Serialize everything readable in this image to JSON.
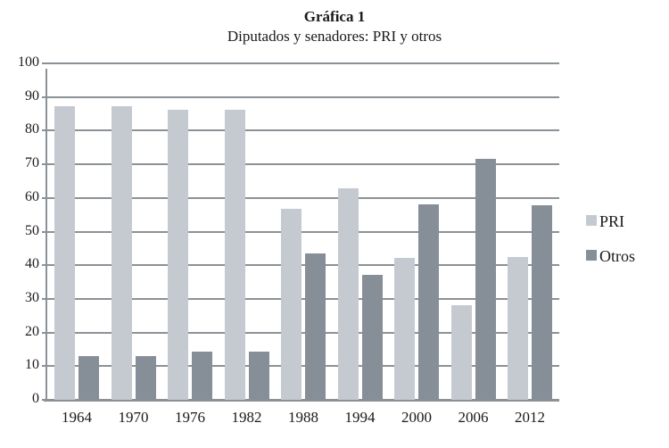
{
  "header": {
    "title": "Gráfica 1",
    "subtitle": "Diputados y senadores: PRI y otros"
  },
  "colors": {
    "pri_bar": "#c5cad1",
    "otros_bar": "#868e98",
    "axis_gray": "#8c9196",
    "text": "#1a1a1a",
    "background": "#ffffff"
  },
  "chart_data": {
    "type": "bar",
    "title": "Gráfica 1",
    "subtitle": "Diputados y senadores: PRI y otros",
    "categories": [
      "1964",
      "1970",
      "1976",
      "1982",
      "1988",
      "1994",
      "2000",
      "2006",
      "2012"
    ],
    "series": [
      {
        "name": "PRI",
        "color": "#c5cad1",
        "values": [
          87.3,
          87.4,
          86.2,
          86.1,
          56.8,
          62.9,
          42.1,
          28.2,
          42.4
        ]
      },
      {
        "name": "Otros",
        "color": "#868e98",
        "values": [
          12.9,
          12.9,
          14.2,
          14.2,
          43.4,
          37.2,
          58.2,
          71.6,
          57.8
        ]
      }
    ],
    "xlabel": "",
    "ylabel": "",
    "ylim": [
      0,
      100
    ],
    "yticks": [
      0,
      10,
      20,
      30,
      40,
      50,
      60,
      70,
      80,
      90,
      100
    ],
    "grid": "horizontal",
    "legend_position": "right"
  }
}
